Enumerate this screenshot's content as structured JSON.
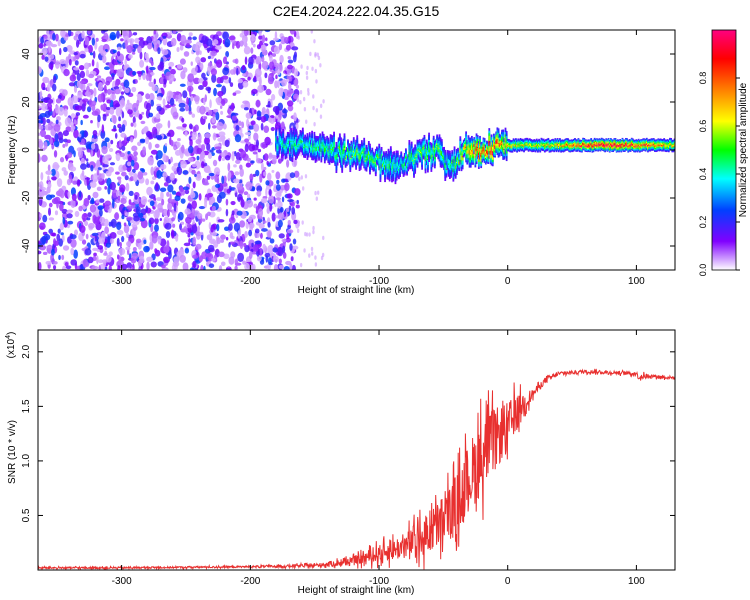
{
  "title": "C2E4.2024.222.04.35.G15",
  "chart_data": [
    {
      "type": "heatmap",
      "title": "",
      "xlabel": "Height of straight line (km)",
      "ylabel": "Frequency (Hz)",
      "xlim": [
        -365,
        130
      ],
      "ylim": [
        -50,
        50
      ],
      "x_ticks": [
        "-300",
        "-200",
        "-100",
        "0",
        "100"
      ],
      "y_ticks": [
        "-40",
        "-20",
        "0",
        "20",
        "40"
      ],
      "colorbar": {
        "label": "Normalized spectral amplitude",
        "range": [
          0.0,
          1.0
        ],
        "ticks": [
          "0.0",
          "0.2",
          "0.4",
          "0.6",
          "0.8"
        ],
        "colors": [
          "#ffffff",
          "#8000ff",
          "#0040ff",
          "#00ffff",
          "#00ff00",
          "#ffff00",
          "#ff8000",
          "#ff0000",
          "#ff0080"
        ]
      },
      "features": {
        "noise_region_x": [
          -365,
          -163
        ],
        "signal_ridge": {
          "x": [
            -180,
            -150,
            -120,
            -100,
            -85,
            -70,
            -55,
            -45,
            -35,
            -25,
            -10,
            0,
            20,
            50,
            80,
            100,
            130
          ],
          "center_freq": [
            3,
            1,
            -2,
            -5,
            -7,
            -2,
            0,
            -8,
            -1,
            0,
            1,
            2,
            2,
            2,
            2,
            2,
            2
          ],
          "amplitude": [
            0.35,
            0.4,
            0.45,
            0.45,
            0.35,
            0.45,
            0.5,
            0.35,
            0.6,
            0.8,
            0.85,
            0.6,
            0.55,
            0.7,
            0.95,
            0.8,
            0.6
          ]
        }
      }
    },
    {
      "type": "line",
      "title": "",
      "xlabel": "Height of straight line (km)",
      "ylabel": "SNR (10 * v/v)",
      "multiplier_label": "(x10",
      "multiplier_exp": "4",
      "xlim": [
        -365,
        130
      ],
      "ylim": [
        0,
        2.2
      ],
      "x_ticks": [
        "-300",
        "-200",
        "-100",
        "0",
        "100"
      ],
      "y_ticks": [
        "0.5",
        "1.0",
        "1.5",
        "2.0"
      ],
      "series": [
        {
          "color": "#e8302f",
          "x": [
            -365,
            -300,
            -200,
            -150,
            -120,
            -100,
            -90,
            -80,
            -70,
            -60,
            -50,
            -40,
            -30,
            -20,
            -10,
            0,
            5,
            10,
            20,
            30,
            40,
            60,
            80,
            100,
            102,
            110,
            130
          ],
          "y": [
            0.02,
            0.02,
            0.03,
            0.04,
            0.08,
            0.15,
            0.18,
            0.22,
            0.28,
            0.35,
            0.45,
            0.6,
            0.85,
            1.05,
            1.2,
            1.3,
            1.4,
            1.5,
            1.62,
            1.75,
            1.8,
            1.82,
            1.81,
            1.8,
            1.77,
            1.78,
            1.76
          ],
          "spread": [
            0.01,
            0.01,
            0.01,
            0.02,
            0.05,
            0.1,
            0.12,
            0.15,
            0.2,
            0.25,
            0.3,
            0.35,
            0.4,
            0.45,
            0.35,
            0.3,
            0.25,
            0.15,
            0.05,
            0.03,
            0.02,
            0.02,
            0.02,
            0.02,
            0.04,
            0.02,
            0.02
          ]
        }
      ]
    }
  ]
}
